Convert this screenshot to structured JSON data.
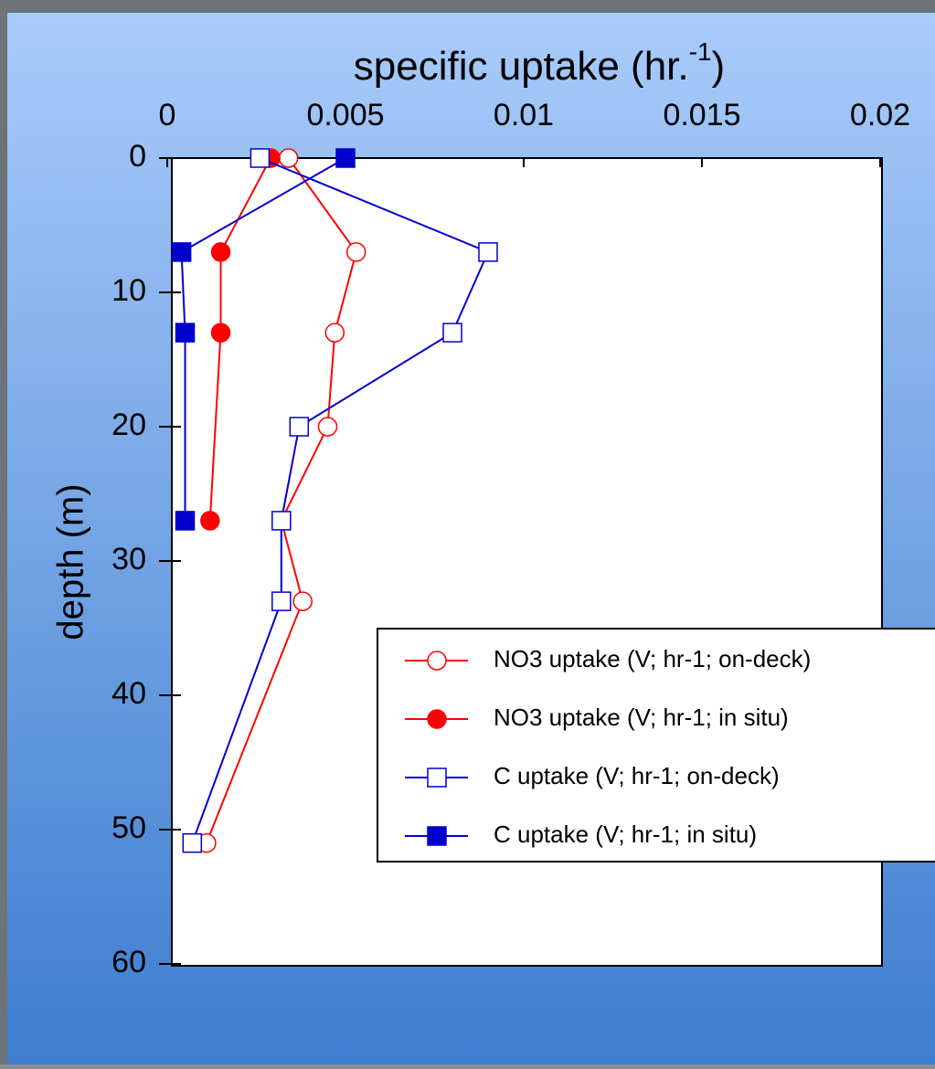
{
  "chart_data": {
    "type": "line",
    "x_label": [
      "specific uptake (hr.",
      "-1",
      ")"
    ],
    "y_label": "depth (m)",
    "xlim": [
      0,
      0.02
    ],
    "xticks": [
      0,
      0.005,
      0.01,
      0.015,
      0.02
    ],
    "ylim": [
      0,
      60
    ],
    "yticks": [
      0,
      10,
      20,
      30,
      40,
      50,
      60
    ],
    "y_inverted": true,
    "x_axis_position": "top",
    "legend_position": "lower right",
    "series": [
      {
        "name": "NO3 uptake (V; hr-1; on-deck)",
        "color": "#ff0000",
        "marker": "circle",
        "filled": false,
        "y": [
          0,
          7,
          13,
          20,
          27,
          33,
          51
        ],
        "values": [
          0.0034,
          0.0053,
          0.0047,
          0.0045,
          0.0032,
          0.0038,
          0.0011
        ]
      },
      {
        "name": "NO3 uptake (V; hr-1; in situ)",
        "color": "#ff0000",
        "marker": "circle",
        "filled": true,
        "y": [
          0,
          7,
          13,
          27
        ],
        "values": [
          0.0029,
          0.0015,
          0.0015,
          0.0012
        ]
      },
      {
        "name": "C uptake (V; hr-1; on-deck)",
        "color": "#0000cc",
        "marker": "square",
        "filled": false,
        "y": [
          0,
          7,
          13,
          20,
          27,
          33,
          51
        ],
        "values": [
          0.0026,
          0.009,
          0.008,
          0.0037,
          0.0032,
          0.0032,
          0.0007
        ]
      },
      {
        "name": "C uptake (V; hr-1; in situ)",
        "color": "#0000cc",
        "marker": "square",
        "filled": true,
        "y": [
          0,
          7,
          13,
          27
        ],
        "values": [
          0.005,
          0.0004,
          0.0005,
          0.0005
        ]
      }
    ]
  }
}
